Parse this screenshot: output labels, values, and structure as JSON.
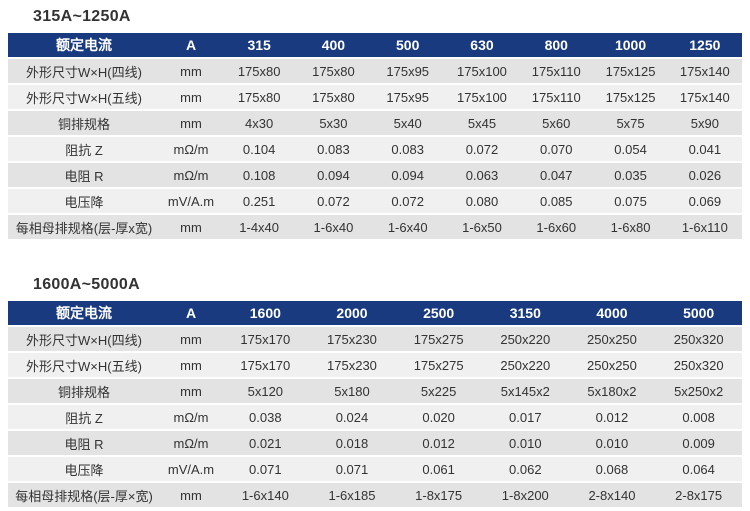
{
  "colors": {
    "header_bg": "#1a3a80",
    "header_text": "#ffffff",
    "row_dark": "#e3e3e3",
    "row_light": "#f0f0f0",
    "text": "#333333",
    "title_text": "#333333"
  },
  "tables": [
    {
      "title": "315A~1250A",
      "header": [
        "额定电流",
        "A",
        "315",
        "400",
        "500",
        "630",
        "800",
        "1000",
        "1250"
      ],
      "rows": [
        [
          "外形尺寸W×H(四线)",
          "mm",
          "175x80",
          "175x80",
          "175x95",
          "175x100",
          "175x110",
          "175x125",
          "175x140"
        ],
        [
          "外形尺寸W×H(五线)",
          "mm",
          "175x80",
          "175x80",
          "175x95",
          "175x100",
          "175x110",
          "175x125",
          "175x140"
        ],
        [
          "铜排规格",
          "mm",
          "4x30",
          "5x30",
          "5x40",
          "5x45",
          "5x60",
          "5x75",
          "5x90"
        ],
        [
          "阻抗 Z",
          "mΩ/m",
          "0.104",
          "0.083",
          "0.083",
          "0.072",
          "0.070",
          "0.054",
          "0.041"
        ],
        [
          "电阻 R",
          "mΩ/m",
          "0.108",
          "0.094",
          "0.094",
          "0.063",
          "0.047",
          "0.035",
          "0.026"
        ],
        [
          "电压降",
          "mV/A.m",
          "0.251",
          "0.072",
          "0.072",
          "0.080",
          "0.085",
          "0.075",
          "0.069"
        ],
        [
          "每相母排规格(层-厚x宽)",
          "mm",
          "1-4x40",
          "1-6x40",
          "1-6x40",
          "1-6x50",
          "1-6x60",
          "1-6x80",
          "1-6x110"
        ]
      ]
    },
    {
      "title": "1600A~5000A",
      "header": [
        "额定电流",
        "A",
        "1600",
        "2000",
        "2500",
        "3150",
        "4000",
        "5000"
      ],
      "rows": [
        [
          "外形尺寸W×H(四线)",
          "mm",
          "175x170",
          "175x230",
          "175x275",
          "250x220",
          "250x250",
          "250x320"
        ],
        [
          "外形尺寸W×H(五线)",
          "mm",
          "175x170",
          "175x230",
          "175x275",
          "250x220",
          "250x250",
          "250x320"
        ],
        [
          "铜排规格",
          "mm",
          "5x120",
          "5x180",
          "5x225",
          "5x145x2",
          "5x180x2",
          "5x250x2"
        ],
        [
          "阻抗 Z",
          "mΩ/m",
          "0.038",
          "0.024",
          "0.020",
          "0.017",
          "0.012",
          "0.008"
        ],
        [
          "电阻 R",
          "mΩ/m",
          "0.021",
          "0.018",
          "0.012",
          "0.010",
          "0.010",
          "0.009"
        ],
        [
          "电压降",
          "mV/A.m",
          "0.071",
          "0.071",
          "0.061",
          "0.062",
          "0.068",
          "0.064"
        ],
        [
          "每相母排规格(层-厚×宽)",
          "mm",
          "1-6x140",
          "1-6x185",
          "1-8x175",
          "1-8x200",
          "2-8x140",
          "2-8x175"
        ]
      ]
    }
  ]
}
